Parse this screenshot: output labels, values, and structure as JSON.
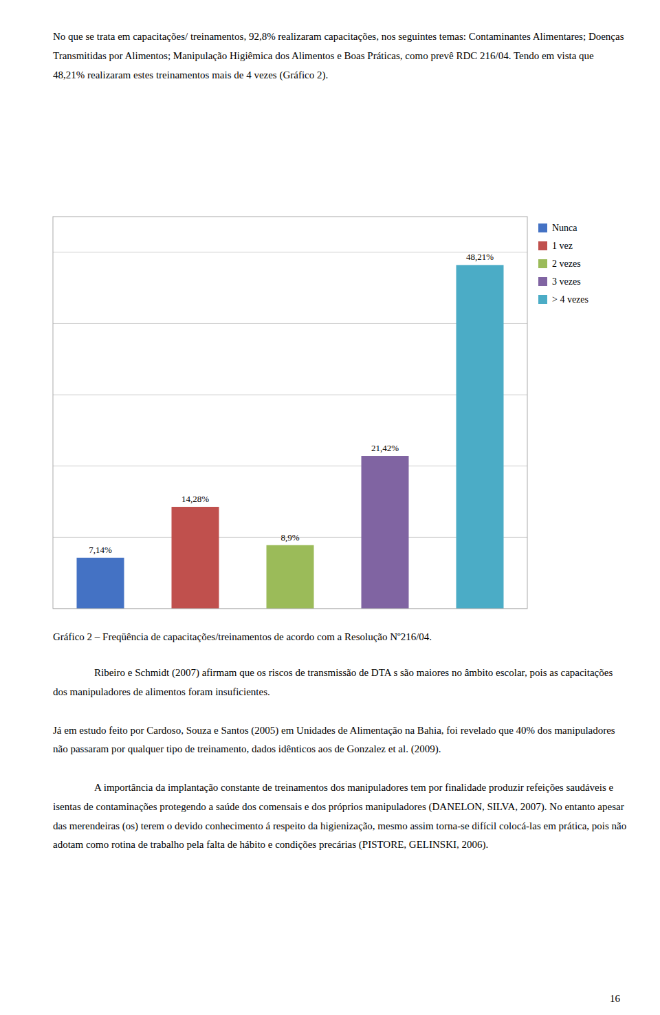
{
  "chart_data": {
    "type": "bar",
    "title": "Gráfico 2 – Freqüência de capacitações/treinamentos de acordo com a Resolução Nº216/04.",
    "categories": [
      "Nunca",
      "1 vez",
      "2 vezes",
      "3 vezes",
      "> 4 vezes"
    ],
    "values": [
      7.14,
      14.28,
      8.9,
      21.42,
      48.21
    ],
    "value_labels": [
      "7,14%",
      "14,28%",
      "8,9%",
      "21,42%",
      "48,21%"
    ],
    "colors": [
      "#4472C4",
      "#C0504D",
      "#9BBB59",
      "#8064A2",
      "#4BACC6"
    ],
    "ylim": [
      0,
      55
    ],
    "yticks": [
      0,
      10,
      20,
      30,
      40,
      50
    ],
    "grid": true,
    "legend": "upper-right",
    "data_labels": true,
    "tick_labels": false,
    "annotations": [
      "No que se trata em capacitações/ treinamentos, 92,8% realizaram capacitações, nos seguintes temas: Contaminantes Alimentares; Doenças Transmitidas por Alimentos; Manipulação Higiêmica dos Alimentos e Boas Práticas, como prevê RDC 216/04. Tendo em vista que 48,21% realizaram estes treinamentos mais de 4 vezes (Gráfico 2).",
      "Ribeiro e Schmidt (2007) afirmam que os riscos de transmissão de DTA s são maiores no âmbito escolar, pois as capacitações dos manipuladores de alimentos foram insuficientes.",
      "Já em estudo feito por Cardoso, Souza e Santos (2005) em Unidades de Alimentação na Bahia, foi revelado que 40% dos manipuladores não passaram por qualquer tipo de treinamento, dados idênticos aos de Gonzalez et al. (2009).",
      "A importância da implantação constante de treinamentos dos manipuladores tem por finalidade produzir refeições saudáveis e isentas de contaminações protegendo a saúde dos comensais e dos próprios manipuladores (DANELON, SILVA, 2007). No entanto apesar das merendeiras (os) terem o devido conhecimento á respeito da higienização, mesmo assim torna-se difícil colocá-las em prática, pois não adotam como rotina de trabalho pela falta de hábito e condições precárias (PISTORE, GELINSKI, 2006).",
      "16"
    ]
  }
}
